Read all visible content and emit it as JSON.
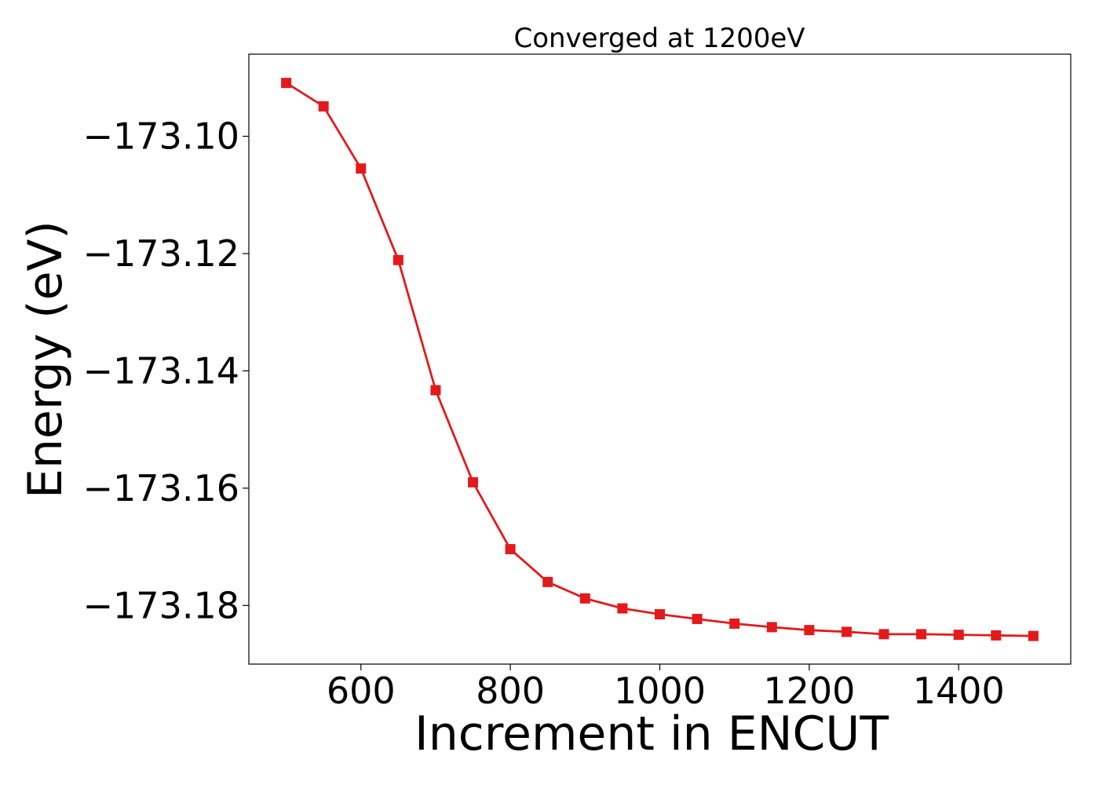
{
  "chart_data": {
    "type": "line",
    "title": "Converged at 1200eV",
    "xlabel": "Increment in ENCUT",
    "ylabel": "Energy (eV)",
    "xlim": [
      450,
      1550
    ],
    "ylim": [
      -173.19,
      -173.086
    ],
    "grid": false,
    "xticks": [
      600,
      800,
      1000,
      1200,
      1400
    ],
    "yticks": [
      -173.1,
      -173.12,
      -173.14,
      -173.16,
      -173.18
    ],
    "xtick_labels": [
      "600",
      "800",
      "1000",
      "1200",
      "1400"
    ],
    "ytick_labels": [
      "−173.10",
      "−173.12",
      "−173.14",
      "−173.16",
      "−173.18"
    ],
    "series": [
      {
        "color": "#e31a1c",
        "marker": "square",
        "x": [
          500,
          550,
          600,
          650,
          700,
          750,
          800,
          850,
          900,
          950,
          1000,
          1050,
          1100,
          1150,
          1200,
          1250,
          1300,
          1350,
          1400,
          1450,
          1500
        ],
        "y": [
          -173.0909,
          -173.0949,
          -173.1055,
          -173.1211,
          -173.1433,
          -173.159,
          -173.1704,
          -173.176,
          -173.1788,
          -173.1805,
          -173.1815,
          -173.1823,
          -173.1831,
          -173.1837,
          -173.1842,
          -173.1845,
          -173.1849,
          -173.1849,
          -173.185,
          -173.1851,
          -173.1852
        ]
      }
    ]
  }
}
